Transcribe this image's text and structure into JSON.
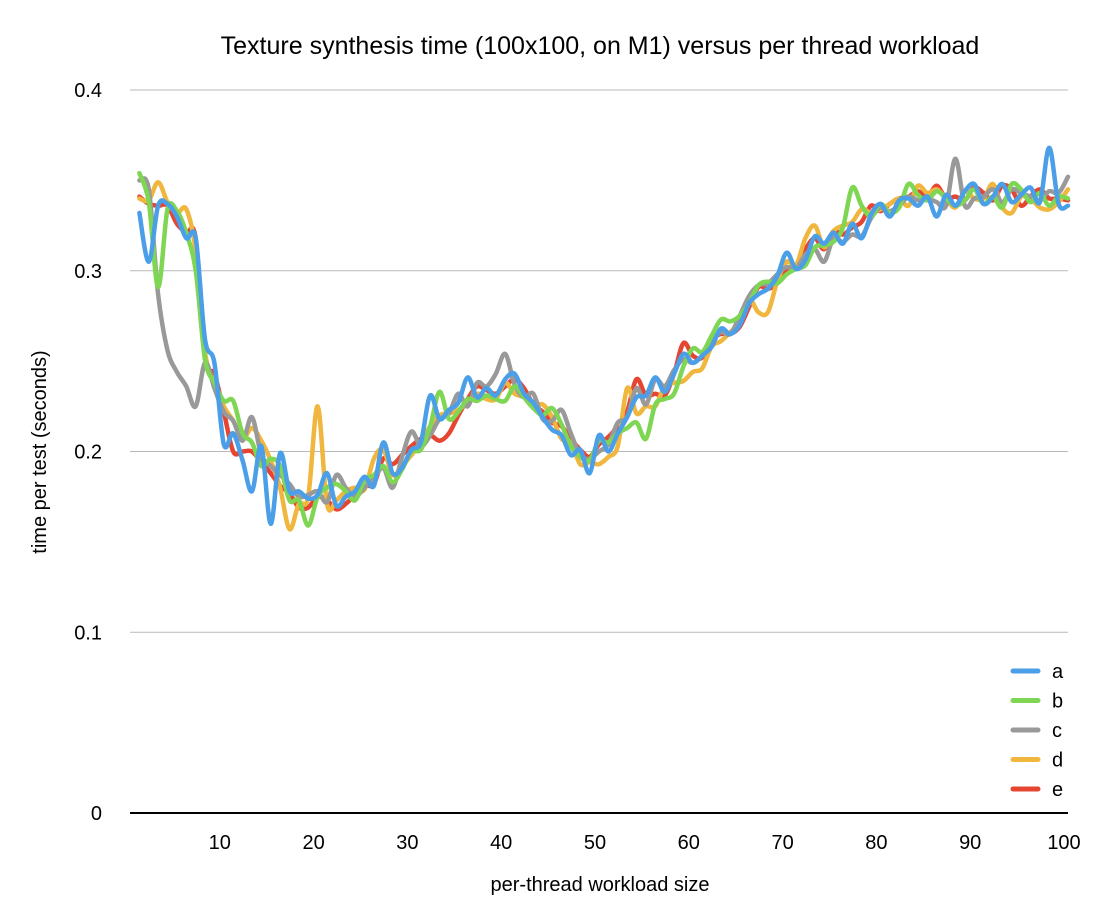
{
  "chart_data": {
    "type": "line",
    "title": "Texture synthesis time (100x100, on M1) versus per thread workload",
    "xlabel": "per-thread workload size",
    "ylabel": "time per test (seconds)",
    "xlim": [
      0,
      100
    ],
    "ylim": [
      0,
      0.4
    ],
    "x_ticks": [
      10,
      20,
      30,
      40,
      50,
      60,
      70,
      80,
      90,
      100
    ],
    "y_ticks": [
      0,
      0.1,
      0.2,
      0.3,
      0.4
    ],
    "x_tick_labels": [
      "10",
      "20",
      "30",
      "40",
      "50",
      "60",
      "70",
      "80",
      "90",
      "100"
    ],
    "y_tick_labels": [
      "0",
      "0.1",
      "0.2",
      "0.3",
      "0.4"
    ],
    "grid": "horizontal",
    "legend_position": "bottom-right",
    "x": [
      1,
      2,
      3,
      4,
      5,
      6,
      7,
      8,
      9,
      10,
      11,
      12,
      13,
      14,
      15,
      16,
      17,
      18,
      19,
      20,
      21,
      22,
      23,
      24,
      25,
      26,
      27,
      28,
      29,
      30,
      31,
      32,
      33,
      34,
      35,
      36,
      37,
      38,
      39,
      40,
      41,
      42,
      43,
      44,
      45,
      46,
      47,
      48,
      49,
      50,
      51,
      52,
      53,
      54,
      55,
      56,
      57,
      58,
      59,
      60,
      61,
      62,
      63,
      64,
      65,
      66,
      67,
      68,
      69,
      70,
      71,
      72,
      73,
      74,
      75,
      76,
      77,
      78,
      79,
      80,
      81,
      82,
      83,
      84,
      85,
      86,
      87,
      88,
      89,
      90,
      91,
      92,
      93,
      94,
      95,
      96,
      97,
      98,
      99,
      100
    ],
    "series": [
      {
        "name": "a",
        "color": "#4a9fe8",
        "values": [
          0.332,
          0.305,
          0.336,
          0.337,
          0.33,
          0.318,
          0.318,
          0.262,
          0.249,
          0.204,
          0.21,
          0.195,
          0.178,
          0.203,
          0.16,
          0.199,
          0.178,
          0.178,
          0.174,
          0.176,
          0.188,
          0.17,
          0.175,
          0.178,
          0.186,
          0.181,
          0.205,
          0.188,
          0.191,
          0.201,
          0.205,
          0.231,
          0.218,
          0.223,
          0.227,
          0.241,
          0.23,
          0.235,
          0.231,
          0.24,
          0.243,
          0.232,
          0.227,
          0.219,
          0.212,
          0.209,
          0.198,
          0.201,
          0.188,
          0.209,
          0.2,
          0.21,
          0.219,
          0.23,
          0.231,
          0.241,
          0.233,
          0.243,
          0.254,
          0.249,
          0.253,
          0.258,
          0.268,
          0.265,
          0.27,
          0.282,
          0.287,
          0.29,
          0.297,
          0.31,
          0.301,
          0.306,
          0.319,
          0.315,
          0.321,
          0.315,
          0.326,
          0.318,
          0.331,
          0.337,
          0.33,
          0.339,
          0.34,
          0.336,
          0.341,
          0.33,
          0.342,
          0.336,
          0.344,
          0.348,
          0.337,
          0.341,
          0.348,
          0.338,
          0.342,
          0.346,
          0.338,
          0.368,
          0.337,
          0.336
        ]
      },
      {
        "name": "b",
        "color": "#7ed653",
        "values": [
          0.354,
          0.338,
          0.291,
          0.334,
          0.333,
          0.321,
          0.3,
          0.251,
          0.238,
          0.228,
          0.228,
          0.21,
          0.205,
          0.192,
          0.196,
          0.192,
          0.173,
          0.173,
          0.159,
          0.175,
          0.18,
          0.182,
          0.178,
          0.173,
          0.184,
          0.187,
          0.192,
          0.183,
          0.19,
          0.2,
          0.201,
          0.214,
          0.233,
          0.218,
          0.222,
          0.229,
          0.228,
          0.231,
          0.229,
          0.228,
          0.236,
          0.23,
          0.224,
          0.22,
          0.224,
          0.215,
          0.203,
          0.197,
          0.195,
          0.206,
          0.205,
          0.21,
          0.213,
          0.216,
          0.207,
          0.226,
          0.229,
          0.232,
          0.247,
          0.257,
          0.255,
          0.264,
          0.273,
          0.272,
          0.275,
          0.282,
          0.292,
          0.294,
          0.293,
          0.298,
          0.301,
          0.303,
          0.313,
          0.314,
          0.316,
          0.324,
          0.346,
          0.336,
          0.33,
          0.337,
          0.332,
          0.335,
          0.348,
          0.342,
          0.339,
          0.344,
          0.34,
          0.336,
          0.339,
          0.345,
          0.337,
          0.341,
          0.335,
          0.348,
          0.345,
          0.338,
          0.343,
          0.336,
          0.341,
          0.34
        ]
      },
      {
        "name": "c",
        "color": "#999999",
        "values": [
          0.35,
          0.345,
          0.287,
          0.256,
          0.244,
          0.236,
          0.225,
          0.249,
          0.235,
          0.222,
          0.217,
          0.206,
          0.219,
          0.198,
          0.192,
          0.187,
          0.182,
          0.175,
          0.176,
          0.178,
          0.172,
          0.187,
          0.18,
          0.175,
          0.18,
          0.185,
          0.191,
          0.18,
          0.197,
          0.211,
          0.203,
          0.209,
          0.218,
          0.221,
          0.232,
          0.225,
          0.238,
          0.236,
          0.243,
          0.254,
          0.237,
          0.23,
          0.232,
          0.218,
          0.217,
          0.223,
          0.21,
          0.198,
          0.196,
          0.2,
          0.204,
          0.216,
          0.219,
          0.235,
          0.226,
          0.24,
          0.236,
          0.245,
          0.251,
          0.249,
          0.253,
          0.261,
          0.266,
          0.265,
          0.275,
          0.286,
          0.292,
          0.293,
          0.298,
          0.302,
          0.301,
          0.309,
          0.312,
          0.305,
          0.318,
          0.316,
          0.32,
          0.319,
          0.329,
          0.335,
          0.333,
          0.336,
          0.341,
          0.339,
          0.34,
          0.338,
          0.336,
          0.362,
          0.336,
          0.34,
          0.341,
          0.345,
          0.338,
          0.345,
          0.343,
          0.341,
          0.339,
          0.344,
          0.343,
          0.352
        ]
      },
      {
        "name": "d",
        "color": "#f0b63e",
        "values": [
          0.34,
          0.339,
          0.349,
          0.338,
          0.332,
          0.334,
          0.311,
          0.255,
          0.238,
          0.225,
          0.217,
          0.207,
          0.213,
          0.206,
          0.195,
          0.18,
          0.157,
          0.171,
          0.175,
          0.225,
          0.171,
          0.173,
          0.178,
          0.18,
          0.179,
          0.196,
          0.201,
          0.187,
          0.192,
          0.198,
          0.205,
          0.214,
          0.22,
          0.221,
          0.223,
          0.227,
          0.232,
          0.229,
          0.229,
          0.238,
          0.232,
          0.23,
          0.225,
          0.226,
          0.219,
          0.207,
          0.205,
          0.193,
          0.194,
          0.193,
          0.197,
          0.203,
          0.235,
          0.221,
          0.225,
          0.225,
          0.236,
          0.238,
          0.239,
          0.244,
          0.246,
          0.258,
          0.261,
          0.266,
          0.271,
          0.284,
          0.277,
          0.277,
          0.294,
          0.305,
          0.303,
          0.318,
          0.325,
          0.313,
          0.322,
          0.325,
          0.327,
          0.334,
          0.332,
          0.334,
          0.337,
          0.34,
          0.336,
          0.347,
          0.343,
          0.345,
          0.34,
          0.335,
          0.344,
          0.34,
          0.34,
          0.348,
          0.335,
          0.332,
          0.341,
          0.34,
          0.335,
          0.334,
          0.338,
          0.345
        ]
      },
      {
        "name": "e",
        "color": "#e64532",
        "values": [
          0.341,
          0.337,
          0.336,
          0.336,
          0.326,
          0.321,
          0.318,
          0.251,
          0.243,
          0.222,
          0.2,
          0.2,
          0.2,
          0.194,
          0.188,
          0.181,
          0.177,
          0.169,
          0.169,
          0.175,
          0.173,
          0.168,
          0.171,
          0.176,
          0.181,
          0.182,
          0.196,
          0.193,
          0.198,
          0.203,
          0.207,
          0.209,
          0.206,
          0.21,
          0.22,
          0.229,
          0.236,
          0.234,
          0.232,
          0.236,
          0.24,
          0.235,
          0.226,
          0.222,
          0.216,
          0.214,
          0.207,
          0.201,
          0.197,
          0.204,
          0.208,
          0.214,
          0.222,
          0.24,
          0.231,
          0.232,
          0.231,
          0.243,
          0.26,
          0.253,
          0.252,
          0.262,
          0.265,
          0.265,
          0.269,
          0.28,
          0.291,
          0.29,
          0.293,
          0.301,
          0.303,
          0.312,
          0.318,
          0.312,
          0.322,
          0.32,
          0.324,
          0.327,
          0.336,
          0.333,
          0.337,
          0.34,
          0.341,
          0.344,
          0.341,
          0.347,
          0.34,
          0.341,
          0.339,
          0.346,
          0.343,
          0.339,
          0.347,
          0.345,
          0.336,
          0.341,
          0.345,
          0.34,
          0.34,
          0.339
        ]
      }
    ]
  }
}
